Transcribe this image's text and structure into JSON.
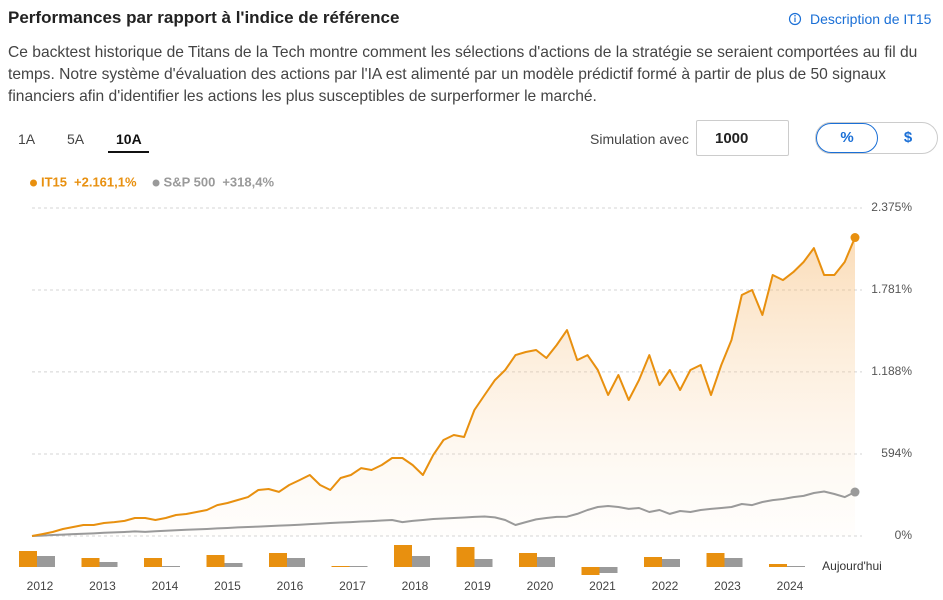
{
  "header": {
    "title": "Performances par rapport à l'indice de référence",
    "link": "Description de IT15"
  },
  "description": "Ce backtest historique de Titans de la Tech montre comment les sélections d'actions de la stratégie se seraient comportées au fil du temps. Notre système d'évaluation des actions par l'IA est alimenté par un modèle prédictif formé à partir de plus de 50 signaux financiers afin d'identifier les actions les plus susceptibles de surperformer le marché.",
  "tabs": [
    "1A",
    "5A",
    "10A"
  ],
  "simulation": {
    "label": "Simulation avec",
    "amount": 1000
  },
  "units": [
    "%",
    "$"
  ],
  "chart_data": [
    {
      "type": "line",
      "series": [
        {
          "name": "IT15",
          "color": "#e8900f",
          "total_return": 2161.1,
          "total_return_label": "+2.161,1%",
          "values": [
            0,
            14,
            29,
            51,
            65,
            80,
            80,
            94,
            101,
            109,
            130,
            130,
            116,
            130,
            152,
            159,
            174,
            188,
            224,
            239,
            261,
            282,
            333,
            340,
            319,
            369,
            405,
            442,
            369,
            333,
            420,
            442,
            492,
            478,
            514,
            565,
            565,
            514,
            442,
            586,
            695,
            731,
            717,
            912,
            1021,
            1129,
            1202,
            1310,
            1332,
            1347,
            1289,
            1383,
            1491,
            1274,
            1310,
            1202,
            1021,
            1166,
            985,
            1129,
            1310,
            1093,
            1202,
            1057,
            1202,
            1238,
            1021,
            1238,
            1419,
            1745,
            1781,
            1600,
            1890,
            1853,
            1911,
            1984,
            2085,
            1890,
            1890,
            1984,
            2161.1
          ]
        },
        {
          "name": "S&P 500",
          "color": "#9a9a9a",
          "total_return": 318.4,
          "total_return_label": "+318,4%",
          "values": [
            0,
            3,
            7,
            10,
            14,
            16,
            19,
            23,
            26,
            29,
            33,
            30,
            35,
            38,
            42,
            45,
            48,
            51,
            55,
            58,
            62,
            65,
            68,
            72,
            75,
            78,
            82,
            86,
            90,
            94,
            98,
            101,
            105,
            108,
            112,
            116,
            101,
            109,
            116,
            123,
            127,
            130,
            134,
            138,
            141,
            135,
            116,
            80,
            101,
            120,
            130,
            138,
            140,
            160,
            188,
            210,
            217,
            210,
            196,
            203,
            174,
            188,
            160,
            181,
            174,
            188,
            196,
            203,
            210,
            232,
            224,
            246,
            260,
            268,
            282,
            290,
            311,
            322,
            304,
            282,
            318.4
          ]
        }
      ],
      "ylim": [
        0,
        2375
      ],
      "yticks": [
        {
          "value": 0,
          "label": "0%"
        },
        {
          "value": 594,
          "label": "594%"
        },
        {
          "value": 1188,
          "label": "1.188%"
        },
        {
          "value": 1781,
          "label": "1.781%"
        },
        {
          "value": 2375,
          "label": "2.375%"
        }
      ],
      "grid": true
    },
    {
      "type": "bar",
      "categories": [
        "2012",
        "2013",
        "2014",
        "2015",
        "2016",
        "2017",
        "2018",
        "2019",
        "2020",
        "2021",
        "2022",
        "2023",
        "2024"
      ],
      "series": [
        {
          "color": "#e8900f",
          "values": [
            16,
            9,
            9,
            12,
            14,
            1,
            22,
            20,
            14,
            -8,
            10,
            14,
            3
          ]
        },
        {
          "color": "#9a9a9a",
          "values": [
            11,
            5,
            1,
            4,
            9,
            1,
            11,
            8,
            10,
            -6,
            8,
            9,
            1
          ]
        }
      ],
      "ylim": [
        -10,
        25
      ],
      "annotation": "Aujourd'hui"
    }
  ]
}
